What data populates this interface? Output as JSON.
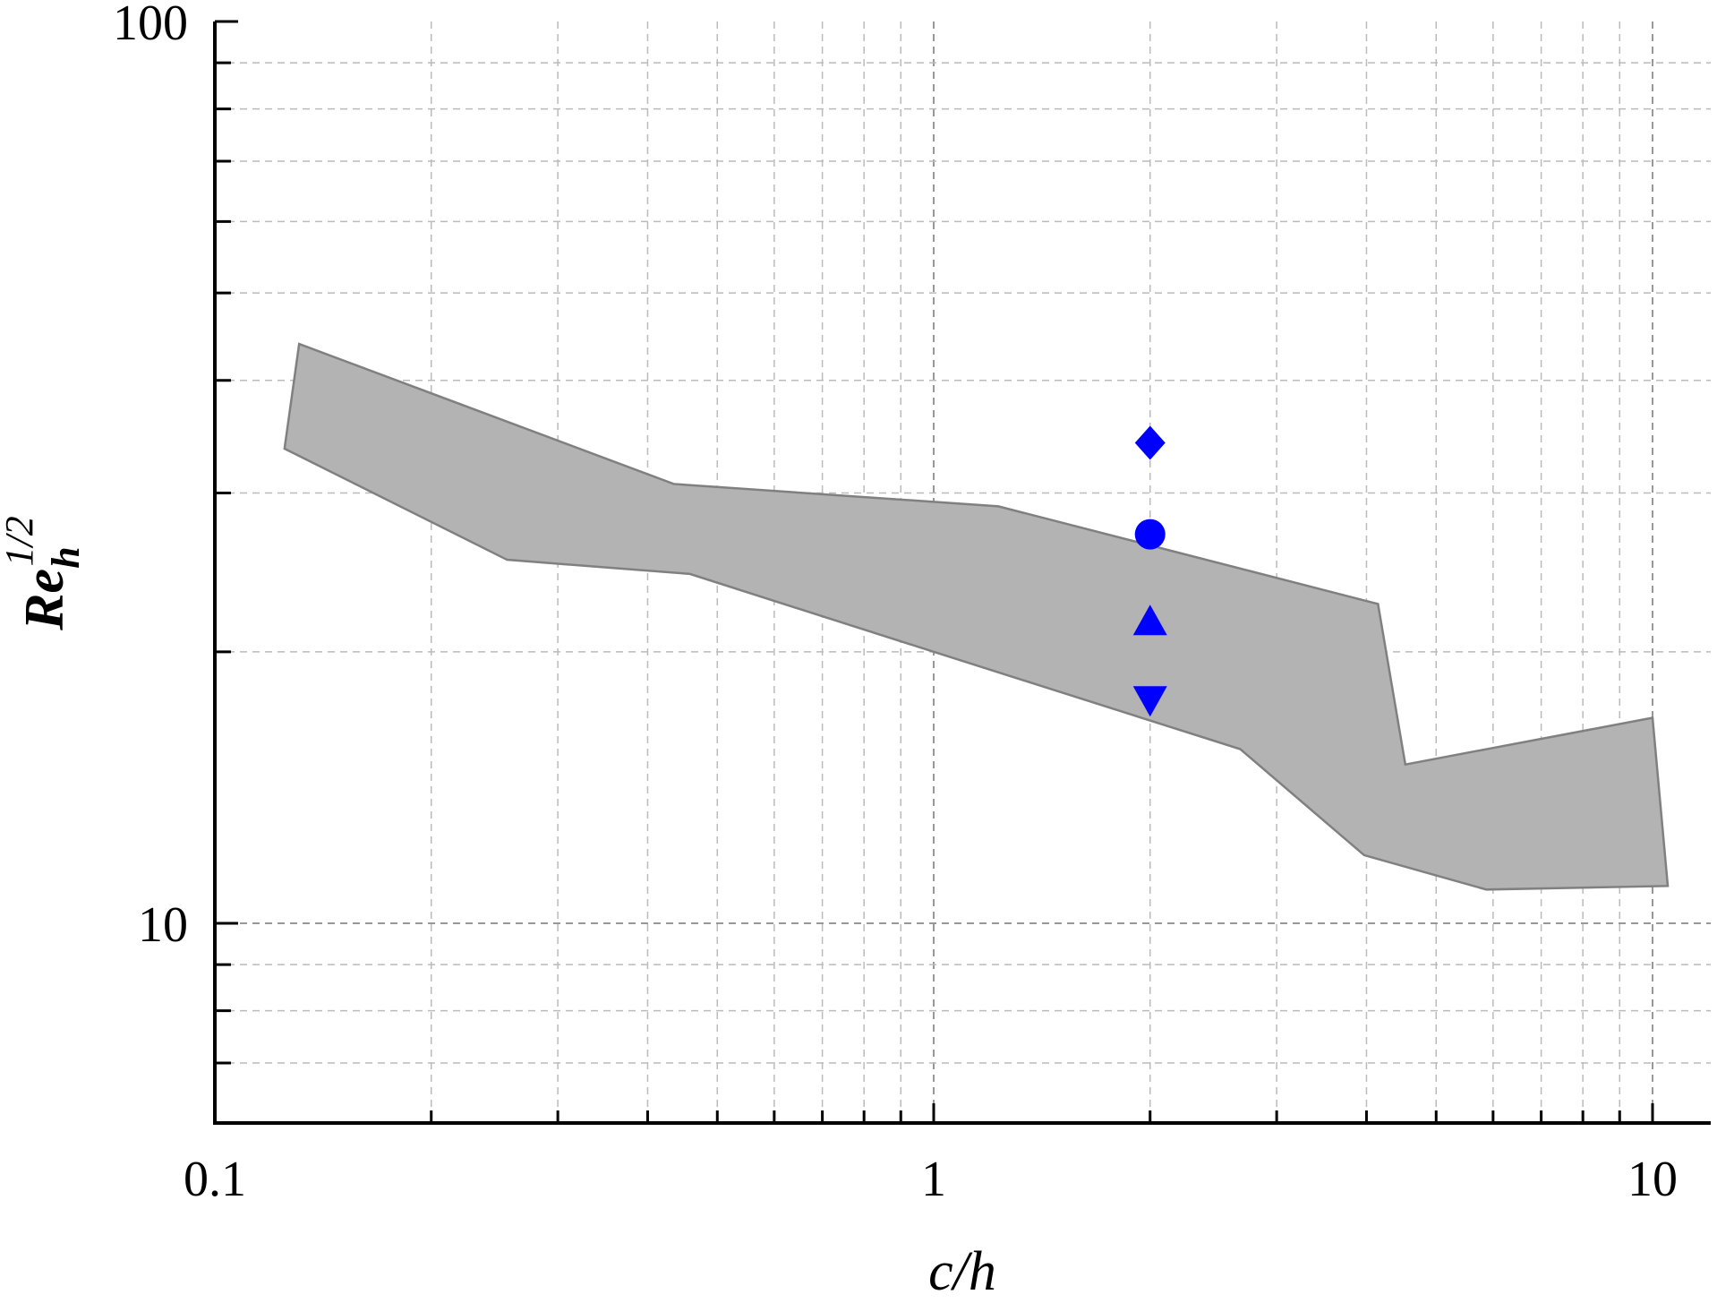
{
  "chart_data": {
    "type": "area",
    "xlabel": "c/h",
    "ylabel": "Re_h^1/2",
    "ylabel_parts": {
      "base": "Re",
      "sub": "h",
      "sup": "1/2"
    },
    "x_scale": "log",
    "y_scale": "log",
    "xlim": [
      0.1,
      12
    ],
    "ylim": [
      6,
      100
    ],
    "x_ticks": [
      {
        "value": 0.1,
        "label": "0.1"
      },
      {
        "value": 1,
        "label": "1"
      },
      {
        "value": 10,
        "label": "10"
      }
    ],
    "y_ticks": [
      {
        "value": 10,
        "label": "10"
      },
      {
        "value": 100,
        "label": "100"
      }
    ],
    "grid": true,
    "band": {
      "color": "#b3b3b3",
      "edge_color": "#808080",
      "polygon": [
        [
          0.131,
          43.9
        ],
        [
          0.435,
          30.7
        ],
        [
          1.23,
          29.0
        ],
        [
          4.15,
          22.6
        ],
        [
          4.53,
          15.0
        ],
        [
          10.0,
          16.9
        ],
        [
          10.5,
          11.0
        ],
        [
          5.87,
          10.9
        ],
        [
          3.97,
          11.9
        ],
        [
          2.67,
          15.6
        ],
        [
          1.0,
          20.0
        ],
        [
          0.458,
          24.4
        ],
        [
          0.255,
          25.3
        ],
        [
          0.125,
          33.6
        ]
      ]
    },
    "series": [
      {
        "marker": "diamond",
        "color": "#0000ff",
        "x": [
          2.0
        ],
        "y": [
          34.1
        ]
      },
      {
        "marker": "circle",
        "color": "#0000ff",
        "x": [
          2.0
        ],
        "y": [
          27.0
        ]
      },
      {
        "marker": "triangle-up",
        "color": "#0000ff",
        "x": [
          2.0
        ],
        "y": [
          21.6
        ]
      },
      {
        "marker": "triangle-down",
        "color": "#0000ff",
        "x": [
          2.0
        ],
        "y": [
          17.7
        ]
      }
    ]
  }
}
